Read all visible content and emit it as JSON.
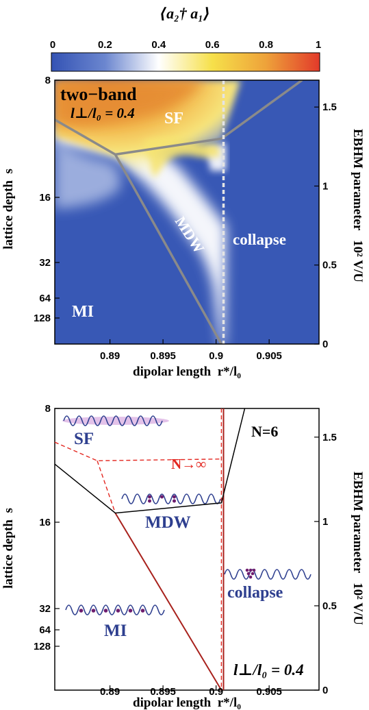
{
  "colorbar": {
    "title": "⟨a₂† a₁⟩",
    "ticks": [
      "0",
      "0.2",
      "0.4",
      "0.6",
      "0.8",
      "1"
    ],
    "gradient": [
      "#3453b4",
      "#6b86cf",
      "#ffffff",
      "#f6e04a",
      "#eea23a",
      "#e23a2a"
    ]
  },
  "top_panel": {
    "title_line1": "two−band",
    "title_line2": "l⊥/l₀ = 0.4",
    "regions": {
      "sf": "SF",
      "mdw": "MDW",
      "collapse": "collapse",
      "mi": "MI"
    },
    "xlabel": "dipolar length  r*/l₀",
    "ylabel": "lattice depth  s",
    "ylabel_right": "EBHM parameter   10² V/U"
  },
  "bottom_panel": {
    "regions": {
      "sf": "SF",
      "mdw": "MDW",
      "collapse": "collapse",
      "mi": "MI"
    },
    "n_inf": "N→∞",
    "n6": "N=6",
    "param": "l⊥/l₀ = 0.4",
    "xlabel": "dipolar length  r*/l₀",
    "ylabel": "lattice depth  s",
    "ylabel_right": "EBHM parameter   10² V/U"
  },
  "chart_data": {
    "type": "heatmap",
    "x_ticks": [
      "0.89",
      "0.895",
      "0.9",
      "0.905"
    ],
    "x_tick_values": [
      0.89,
      0.895,
      0.9,
      0.905
    ],
    "xlim": [
      0.8848,
      0.9097
    ],
    "s_ticks": [
      "8",
      "16",
      "32",
      "64",
      "128"
    ],
    "s_tick_values": [
      8,
      16,
      32,
      64,
      128
    ],
    "right_ticks": [
      "0",
      "0.5",
      "1",
      "1.5"
    ],
    "right_tick_values": [
      0,
      0.5,
      1,
      1.5
    ],
    "right_lim": [
      0,
      1.67
    ],
    "top_boundaries_gray": [
      [
        [
          0.8848,
          1.42
        ],
        [
          0.8905,
          1.2
        ],
        [
          0.9005,
          1.3
        ],
        [
          0.9081,
          1.67
        ]
      ],
      [
        [
          0.8905,
          1.2
        ],
        [
          0.9005,
          0
        ]
      ]
    ],
    "top_collapse_dotted_x": 0.9007,
    "bottom_N6_black": [
      [
        [
          0.8848,
          1.34
        ],
        [
          0.8905,
          1.05
        ],
        [
          0.9005,
          1.11
        ],
        [
          0.9027,
          1.67
        ]
      ]
    ],
    "bottom_Ninf_dashed_red": [
      [
        [
          0.8848,
          1.47
        ],
        [
          0.8888,
          1.36
        ],
        [
          0.9005,
          1.37
        ]
      ],
      [
        [
          0.8888,
          1.36
        ],
        [
          0.8905,
          1.05
        ]
      ],
      [
        [
          0.9005,
          1.67
        ],
        [
          0.9005,
          0
        ]
      ]
    ],
    "bottom_MDW_boundary_red": [
      [
        0.8905,
        1.05
      ],
      [
        0.9005,
        0
      ]
    ]
  }
}
